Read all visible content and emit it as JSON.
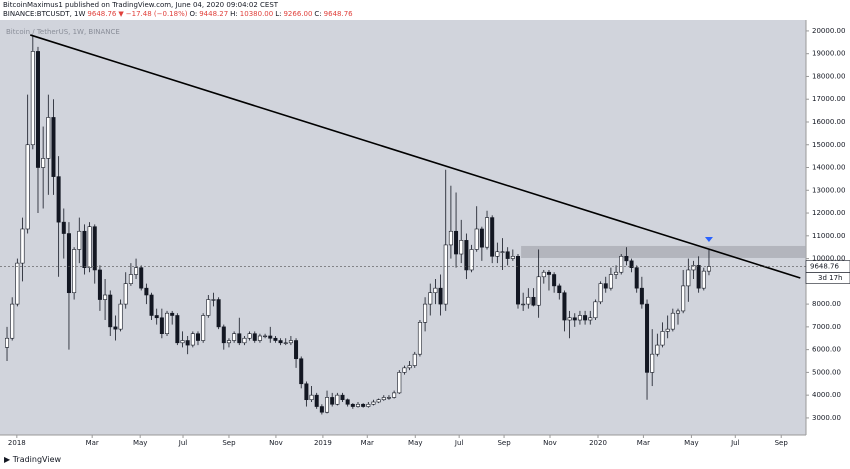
{
  "header": {
    "line1": "BitcoinMaximus1 published on TradingView.com, June 04, 2020 09:04:02 CEST",
    "line2": [
      {
        "text": "BINANCE:BTCUSDT, 1W",
        "red": false
      },
      {
        "text": "9648.76",
        "red": true
      },
      {
        "text": "▼",
        "red": true
      },
      {
        "text": "−17.48 (−0.18%)",
        "red": true
      },
      {
        "text": "O:",
        "red": false
      },
      {
        "text": "9448.27",
        "red": true
      },
      {
        "text": "H:",
        "red": false
      },
      {
        "text": "10380.00",
        "red": true
      },
      {
        "text": "L:",
        "red": false
      },
      {
        "text": "9266.00",
        "red": true
      },
      {
        "text": "C:",
        "red": false
      },
      {
        "text": "9648.76",
        "red": true
      }
    ]
  },
  "chart_data": {
    "type": "candlestick",
    "legend": "Bitcoin / TetherUS, 1W, BINANCE",
    "up_color": "#ffffff",
    "down_color": "#131722",
    "background": "#d1d4dc",
    "xlim": [
      -1.36,
      154.8
    ],
    "ylim": [
      2250,
      20480
    ],
    "xticks": [
      {
        "value": 1.9,
        "label": "2018"
      },
      {
        "value": 16.5,
        "label": "Mar"
      },
      {
        "value": 25.8,
        "label": "May"
      },
      {
        "value": 34.1,
        "label": "Jul"
      },
      {
        "value": 43.0,
        "label": "Sep"
      },
      {
        "value": 52.1,
        "label": "Nov"
      },
      {
        "value": 61.2,
        "label": "2019"
      },
      {
        "value": 69.8,
        "label": "Mar"
      },
      {
        "value": 79.1,
        "label": "May"
      },
      {
        "value": 87.6,
        "label": "Jul"
      },
      {
        "value": 96.3,
        "label": "Sep"
      },
      {
        "value": 105.2,
        "label": "Nov"
      },
      {
        "value": 114.5,
        "label": "2020"
      },
      {
        "value": 123.3,
        "label": "Mar"
      },
      {
        "value": 132.6,
        "label": "May"
      },
      {
        "value": 141.1,
        "label": "Jul"
      },
      {
        "value": 150.0,
        "label": "Sep"
      }
    ],
    "yticks": [
      {
        "value": 3000,
        "label": "3000.00"
      },
      {
        "value": 4000,
        "label": "4000.00"
      },
      {
        "value": 5000,
        "label": "5000.00"
      },
      {
        "value": 6000,
        "label": "6000.00"
      },
      {
        "value": 7000,
        "label": "7000.00"
      },
      {
        "value": 8000,
        "label": "8000.00"
      },
      {
        "value": 9000,
        "label": "9000.00"
      },
      {
        "value": 10000,
        "label": "10000.00"
      },
      {
        "value": 11000,
        "label": "11000.00"
      },
      {
        "value": 12000,
        "label": "12000.00"
      },
      {
        "value": 13000,
        "label": "13000.00"
      },
      {
        "value": 14000,
        "label": "14000.00"
      },
      {
        "value": 15000,
        "label": "15000.00"
      },
      {
        "value": 16000,
        "label": "16000.00"
      },
      {
        "value": 17000,
        "label": "17000.00"
      },
      {
        "value": 18000,
        "label": "18000.00"
      },
      {
        "value": 19000,
        "label": "19000.00"
      },
      {
        "value": 20000,
        "label": "20000.00"
      }
    ],
    "last_price": {
      "value": 9648.76,
      "label": "9648.76"
    },
    "countdown": "3d 17h",
    "trendline": [
      [
        4.5,
        19824
      ],
      [
        153.7,
        9148
      ]
    ],
    "zone": {
      "from": 99.6,
      "price_range": [
        10026,
        10554
      ]
    },
    "ohlc": [
      [
        6100,
        7000,
        5500,
        6500
      ],
      [
        6500,
        8300,
        6400,
        8000
      ],
      [
        8000,
        10000,
        7900,
        9800
      ],
      [
        9800,
        11800,
        9000,
        11300
      ],
      [
        11300,
        17200,
        11100,
        15000
      ],
      [
        15000,
        19800,
        14800,
        19100
      ],
      [
        19100,
        19300,
        12000,
        14000
      ],
      [
        14000,
        15800,
        12200,
        14400
      ],
      [
        14400,
        17200,
        12800,
        16200
      ],
      [
        16200,
        17000,
        12800,
        13600
      ],
      [
        13600,
        14500,
        9200,
        11600
      ],
      [
        11600,
        12200,
        10000,
        11100
      ],
      [
        11100,
        11600,
        6000,
        8500
      ],
      [
        8500,
        10500,
        8200,
        10400
      ],
      [
        10400,
        11800,
        9800,
        11200
      ],
      [
        11200,
        11500,
        9300,
        9600
      ],
      [
        9600,
        11600,
        9400,
        11400
      ],
      [
        11400,
        11500,
        8900,
        9500
      ],
      [
        9500,
        9700,
        7700,
        8200
      ],
      [
        8200,
        9100,
        7300,
        8400
      ],
      [
        8400,
        8600,
        6600,
        7000
      ],
      [
        7000,
        7500,
        6400,
        6900
      ],
      [
        6900,
        8200,
        6800,
        8000
      ],
      [
        8000,
        9400,
        7800,
        8900
      ],
      [
        8900,
        9800,
        8800,
        9300
      ],
      [
        9300,
        10000,
        9100,
        9600
      ],
      [
        9600,
        9700,
        8600,
        8700
      ],
      [
        8700,
        8900,
        8000,
        8400
      ],
      [
        8400,
        8500,
        7300,
        7500
      ],
      [
        7500,
        7800,
        7100,
        7400
      ],
      [
        7400,
        7800,
        6500,
        6700
      ],
      [
        6700,
        7700,
        6600,
        7600
      ],
      [
        7600,
        7700,
        7100,
        7500
      ],
      [
        7500,
        7600,
        6200,
        6300
      ],
      [
        6300,
        6800,
        6100,
        6400
      ],
      [
        6400,
        6600,
        5800,
        6200
      ],
      [
        6200,
        6800,
        6100,
        6700
      ],
      [
        6700,
        6800,
        6200,
        6400
      ],
      [
        6400,
        7600,
        6300,
        7500
      ],
      [
        7500,
        8400,
        7400,
        8200
      ],
      [
        8200,
        8500,
        7900,
        8200
      ],
      [
        8200,
        8300,
        6900,
        7000
      ],
      [
        7000,
        7100,
        6000,
        6300
      ],
      [
        6300,
        6500,
        6100,
        6400
      ],
      [
        6400,
        6800,
        6300,
        6700
      ],
      [
        6700,
        7400,
        6200,
        6300
      ],
      [
        6300,
        6600,
        6200,
        6500
      ],
      [
        6500,
        6800,
        6400,
        6700
      ],
      [
        6700,
        6800,
        6300,
        6400
      ],
      [
        6400,
        6700,
        6300,
        6600
      ],
      [
        6600,
        6700,
        6500,
        6600
      ],
      [
        6600,
        7000,
        6300,
        6500
      ],
      [
        6500,
        6600,
        6300,
        6400
      ],
      [
        6400,
        6500,
        6200,
        6300
      ],
      [
        6300,
        6500,
        6200,
        6300
      ],
      [
        6300,
        6600,
        6200,
        6400
      ],
      [
        6400,
        6500,
        5200,
        5600
      ],
      [
        5600,
        5700,
        4300,
        4500
      ],
      [
        4500,
        4600,
        3500,
        3800
      ],
      [
        3800,
        4400,
        3700,
        4000
      ],
      [
        4000,
        4100,
        3400,
        3500
      ],
      [
        3500,
        3600,
        3150,
        3250
      ],
      [
        3250,
        4200,
        3200,
        3900
      ],
      [
        3900,
        4100,
        3500,
        3600
      ],
      [
        3600,
        4100,
        3550,
        4000
      ],
      [
        4000,
        4100,
        3700,
        3800
      ],
      [
        3800,
        3850,
        3500,
        3600
      ],
      [
        3600,
        3650,
        3400,
        3500
      ],
      [
        3500,
        3700,
        3450,
        3600
      ],
      [
        3600,
        3650,
        3450,
        3500
      ],
      [
        3500,
        3700,
        3450,
        3600
      ],
      [
        3600,
        3800,
        3550,
        3700
      ],
      [
        3700,
        3850,
        3650,
        3800
      ],
      [
        3800,
        4000,
        3750,
        3900
      ],
      [
        3900,
        4000,
        3800,
        3900
      ],
      [
        3900,
        4200,
        3850,
        4100
      ],
      [
        4100,
        5100,
        4050,
        5000
      ],
      [
        5000,
        5300,
        4900,
        5200
      ],
      [
        5200,
        5500,
        5100,
        5300
      ],
      [
        5300,
        5900,
        5200,
        5800
      ],
      [
        5800,
        7300,
        5700,
        7200
      ],
      [
        7200,
        8300,
        6800,
        8000
      ],
      [
        8000,
        8900,
        7500,
        8500
      ],
      [
        8500,
        9100,
        8000,
        8700
      ],
      [
        8700,
        9300,
        7500,
        8000
      ],
      [
        8000,
        13900,
        7700,
        10600
      ],
      [
        10600,
        13200,
        10000,
        11200
      ],
      [
        11200,
        12900,
        9600,
        10200
      ],
      [
        10200,
        11700,
        9800,
        10800
      ],
      [
        10800,
        11100,
        9100,
        9500
      ],
      [
        9500,
        10600,
        9400,
        10400
      ],
      [
        10400,
        12300,
        10300,
        11300
      ],
      [
        11300,
        11400,
        9900,
        10500
      ],
      [
        10500,
        12100,
        10400,
        11800
      ],
      [
        11800,
        11900,
        9800,
        10100
      ],
      [
        10100,
        10700,
        9800,
        10300
      ],
      [
        10300,
        10900,
        9500,
        10300
      ],
      [
        10300,
        10500,
        9700,
        10000
      ],
      [
        10000,
        10400,
        9900,
        10100
      ],
      [
        10100,
        10200,
        7800,
        8000
      ],
      [
        8000,
        8500,
        7700,
        8000
      ],
      [
        8000,
        8700,
        7800,
        8300
      ],
      [
        8300,
        8700,
        7900,
        7950
      ],
      [
        7950,
        10400,
        7400,
        9200
      ],
      [
        9200,
        9500,
        8900,
        9400
      ],
      [
        9400,
        9500,
        8600,
        9300
      ],
      [
        9300,
        9400,
        8500,
        8800
      ],
      [
        8800,
        8900,
        8200,
        8500
      ],
      [
        8500,
        8600,
        6800,
        7300
      ],
      [
        7300,
        7700,
        6500,
        7400
      ],
      [
        7400,
        7600,
        7000,
        7300
      ],
      [
        7300,
        7700,
        7100,
        7500
      ],
      [
        7500,
        7700,
        7100,
        7300
      ],
      [
        7300,
        7700,
        7100,
        7400
      ],
      [
        7400,
        8200,
        7300,
        8100
      ],
      [
        8100,
        9000,
        8000,
        8900
      ],
      [
        8900,
        9200,
        8500,
        8700
      ],
      [
        8700,
        9600,
        8600,
        9300
      ],
      [
        9300,
        9700,
        9100,
        9400
      ],
      [
        9400,
        10200,
        9300,
        10100
      ],
      [
        10100,
        10500,
        9700,
        9900
      ],
      [
        9900,
        10000,
        9400,
        9600
      ],
      [
        9600,
        9700,
        8500,
        8700
      ],
      [
        8700,
        9200,
        7800,
        8000
      ],
      [
        8000,
        8200,
        3800,
        5000
      ],
      [
        5000,
        6900,
        4400,
        5800
      ],
      [
        5800,
        6700,
        5700,
        6200
      ],
      [
        6200,
        7200,
        6100,
        6800
      ],
      [
        6800,
        7500,
        6500,
        6900
      ],
      [
        6900,
        7800,
        6800,
        7600
      ],
      [
        7600,
        7800,
        7100,
        7700
      ],
      [
        7700,
        9500,
        7600,
        8800
      ],
      [
        8800,
        10000,
        8100,
        9500
      ],
      [
        9500,
        9900,
        9100,
        9700
      ],
      [
        9700,
        10100,
        8500,
        8700
      ],
      [
        8700,
        9600,
        8600,
        9448.27
      ],
      [
        9448.27,
        10380,
        9266,
        9648.76
      ]
    ]
  },
  "footer": {
    "brand": "TradingView"
  }
}
